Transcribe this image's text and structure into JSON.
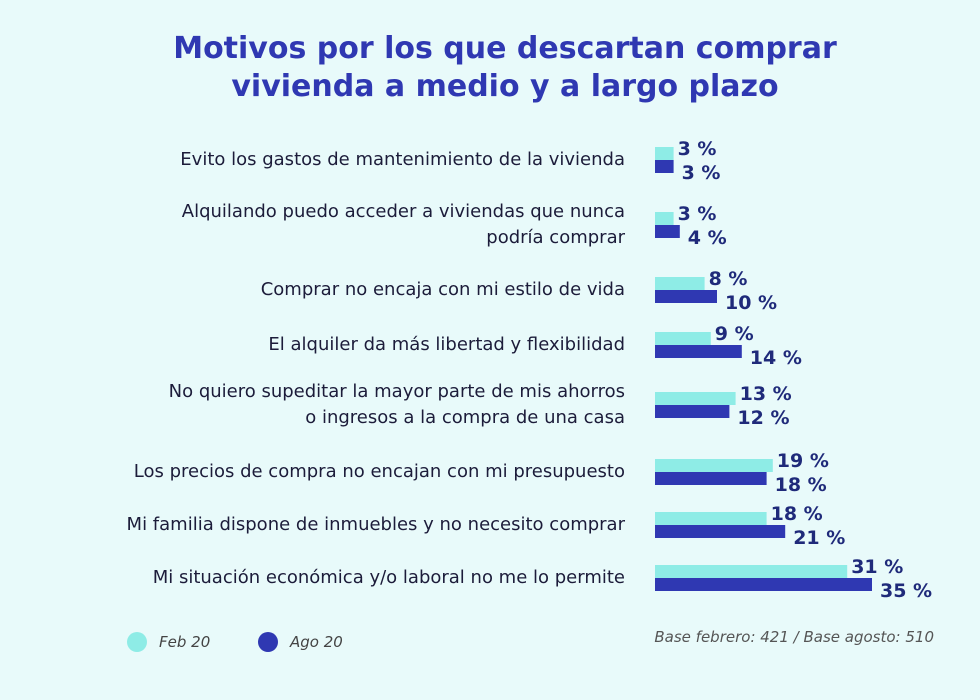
{
  "chart_data": {
    "type": "bar",
    "orientation": "horizontal",
    "title": "Motivos por los que descartan comprar vivienda a medio y a largo plazo",
    "title_lines": [
      "Motivos por los que descartan comprar",
      "vivienda a medio y a largo plazo"
    ],
    "categories": [
      [
        "Evito los gastos de mantenimiento de la vivienda"
      ],
      [
        "Alquilando puedo acceder a viviendas que nunca",
        "podría comprar"
      ],
      [
        "Comprar no encaja con mi estilo de vida"
      ],
      [
        "El alquiler da más libertad y flexibilidad"
      ],
      [
        "No quiero supeditar la mayor parte de mis ahorros",
        "o ingresos a la compra de una casa"
      ],
      [
        "Los precios de compra no encajan con mi presupuesto"
      ],
      [
        "Mi familia dispone de inmuebles y no necesito comprar"
      ],
      [
        "Mi situación económica  y/o laboral no me lo permite"
      ]
    ],
    "series": [
      {
        "name": "Feb 20",
        "color": "#8eece6",
        "values": [
          3,
          3,
          8,
          9,
          13,
          19,
          18,
          31
        ]
      },
      {
        "name": "Ago 20",
        "color": "#2f38b2",
        "values": [
          3,
          4,
          10,
          14,
          12,
          18,
          21,
          35
        ]
      }
    ],
    "value_suffix": " %",
    "label_color": "#1f2a7a",
    "footnote": "Base febrero: 421 / Base agosto: 510",
    "legend_position": "bottom-left"
  }
}
